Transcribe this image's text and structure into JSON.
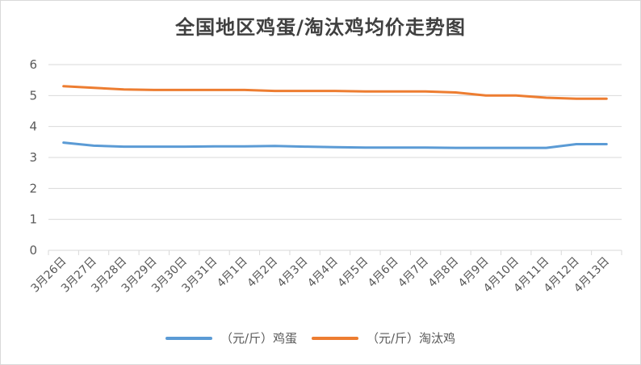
{
  "chart_data": {
    "type": "line",
    "title": "全国地区鸡蛋/淘汰鸡均价走势图",
    "xlabel": "",
    "ylabel": "",
    "ylim": [
      0,
      6
    ],
    "yticks": [
      0,
      1,
      2,
      3,
      4,
      5,
      6
    ],
    "grid": true,
    "legend_position": "bottom",
    "x": [
      "3月26日",
      "3月27日",
      "3月28日",
      "3月29日",
      "3月30日",
      "3月31日",
      "4月1日",
      "4月2日",
      "4月3日",
      "4月4日",
      "4月5日",
      "4月6日",
      "4月7日",
      "4月8日",
      "4月9日",
      "4月10日",
      "4月11日",
      "4月12日",
      "4月13日"
    ],
    "series": [
      {
        "name": "（元/斤）鸡蛋",
        "color": "#5b9bd5",
        "values": [
          3.48,
          3.38,
          3.35,
          3.35,
          3.35,
          3.36,
          3.36,
          3.37,
          3.35,
          3.33,
          3.32,
          3.32,
          3.32,
          3.31,
          3.31,
          3.31,
          3.31,
          3.43,
          3.43
        ]
      },
      {
        "name": "（元/斤）淘汰鸡",
        "color": "#ed7d31",
        "values": [
          5.3,
          5.25,
          5.2,
          5.18,
          5.18,
          5.18,
          5.18,
          5.15,
          5.15,
          5.15,
          5.13,
          5.13,
          5.13,
          5.1,
          5.0,
          5.0,
          4.93,
          4.9,
          4.9
        ]
      }
    ]
  }
}
